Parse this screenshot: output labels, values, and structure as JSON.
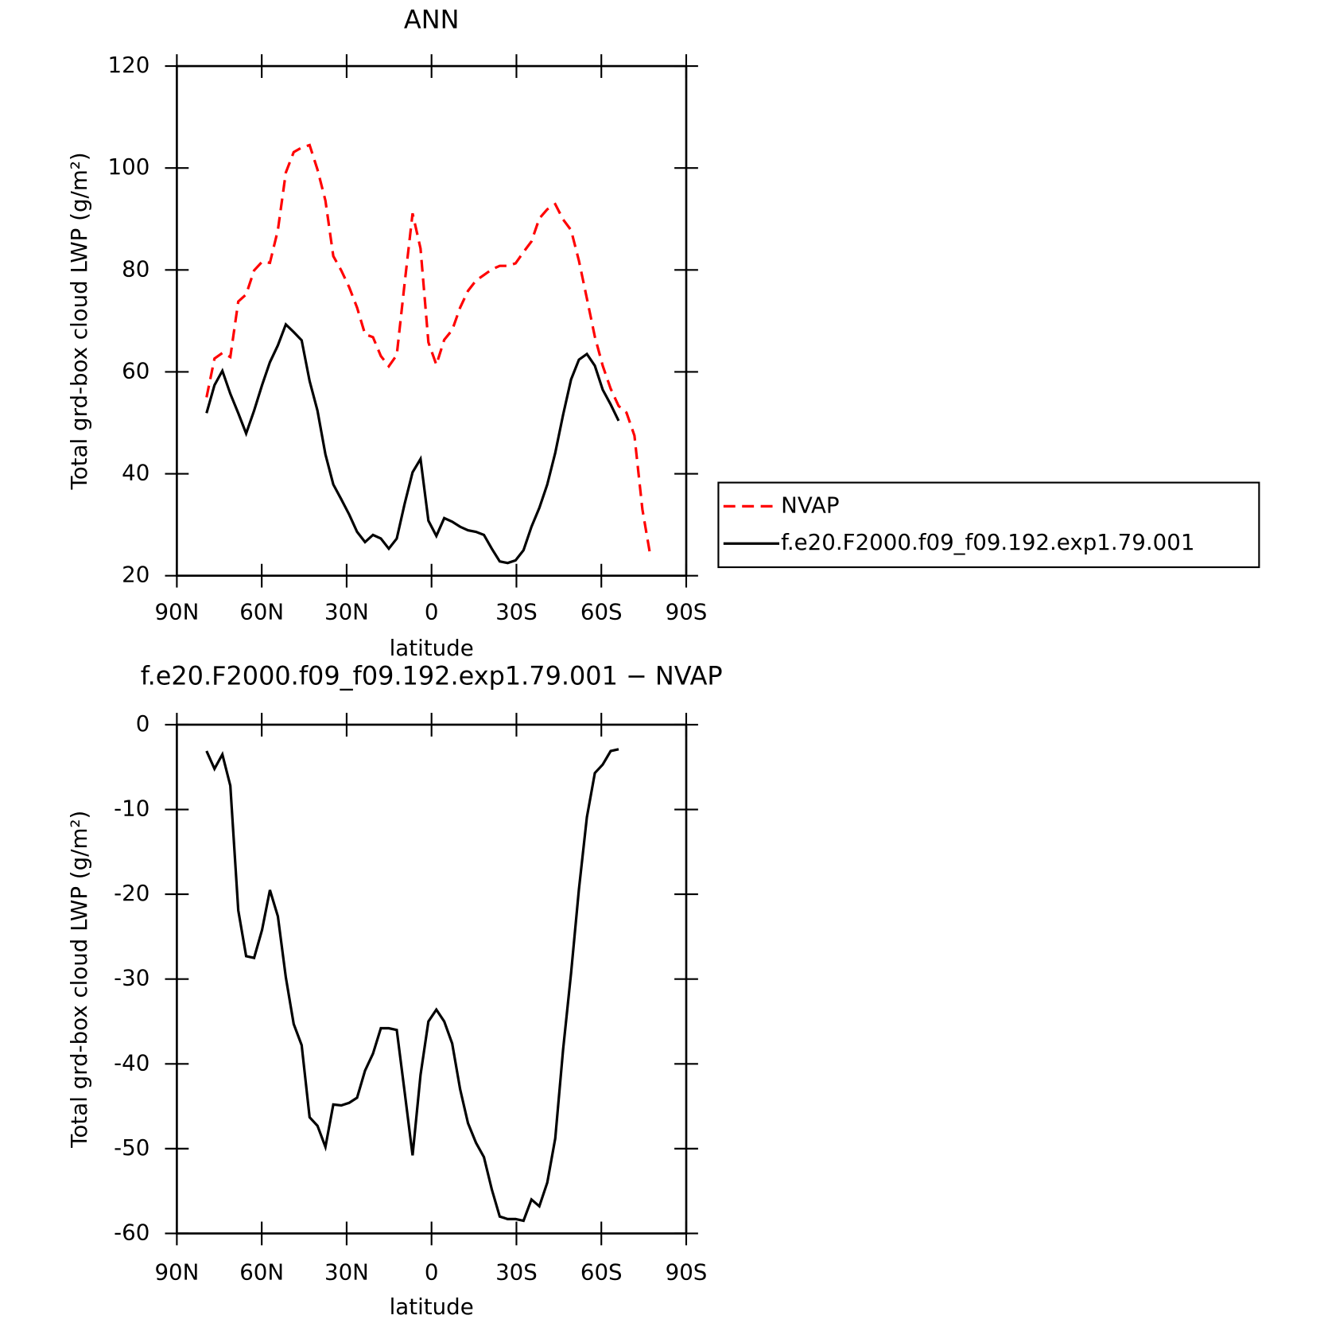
{
  "chart_data": [
    {
      "type": "line",
      "title": "ANN",
      "xlabel": "latitude",
      "ylabel": "Total grd-box cloud LWP (g/m²)",
      "xlim": [
        90,
        -90
      ],
      "ylim": [
        20,
        120
      ],
      "xticks": [
        {
          "value": 90,
          "label": "90N"
        },
        {
          "value": 60,
          "label": "60N"
        },
        {
          "value": 30,
          "label": "30N"
        },
        0,
        {
          "value": -30,
          "label": "30S"
        },
        {
          "value": -60,
          "label": "60S"
        },
        {
          "value": -90,
          "label": "90S"
        }
      ],
      "yticks": [
        20,
        40,
        60,
        80,
        100,
        120
      ],
      "legend": "outside right",
      "series": [
        {
          "name": "NVAP",
          "color": "#ff0000",
          "dash": true,
          "x": [
            79.5,
            76.7,
            73.9,
            71.1,
            68.3,
            65.5,
            62.7,
            59.9,
            57.1,
            54.3,
            51.5,
            48.7,
            45.9,
            43.1,
            40.3,
            37.5,
            34.7,
            31.9,
            29.1,
            26.3,
            23.5,
            20.7,
            17.9,
            15.1,
            12.3,
            9.5,
            6.7,
            3.9,
            1.1,
            -1.7,
            -4.5,
            -7.3,
            -10.1,
            -12.9,
            -15.7,
            -18.5,
            -21.3,
            -24.1,
            -26.9,
            -29.7,
            -32.5,
            -35.3,
            -38.1,
            -40.9,
            -43.7,
            -46.5,
            -49.3,
            -52.1,
            -54.9,
            -57.7,
            -60.5,
            -63.3,
            -66.1,
            -68.9,
            -71.7,
            -74.5,
            -77.3
          ],
          "values": [
            55.0,
            62.6,
            63.7,
            62.9,
            73.8,
            75.2,
            79.9,
            81.6,
            81.4,
            87.8,
            99.1,
            103.1,
            104.0,
            104.5,
            99.7,
            93.6,
            82.7,
            79.9,
            76.6,
            72.6,
            67.4,
            66.8,
            63.1,
            61.1,
            63.3,
            77.4,
            91.1,
            84.2,
            65.8,
            61.4,
            66.3,
            68.2,
            72.6,
            75.9,
            77.9,
            79.0,
            80.1,
            80.8,
            80.8,
            81.3,
            83.5,
            85.6,
            90.1,
            91.9,
            92.9,
            89.9,
            87.8,
            81.8,
            74.4,
            66.9,
            61.2,
            56.7,
            53.3,
            52.0,
            47.5,
            33.0,
            24.0
          ]
        },
        {
          "name": "f.e20.F2000.f09_f09.192.exp1.79.001",
          "color": "#000000",
          "dash": false,
          "x": [
            79.5,
            76.7,
            73.9,
            71.1,
            68.3,
            65.5,
            62.7,
            59.9,
            57.1,
            54.3,
            51.5,
            48.7,
            45.9,
            43.1,
            40.3,
            37.5,
            34.7,
            31.9,
            29.1,
            26.3,
            23.5,
            20.7,
            17.9,
            15.1,
            12.3,
            9.5,
            6.7,
            3.9,
            1.1,
            -1.7,
            -4.5,
            -7.3,
            -10.1,
            -12.9,
            -15.7,
            -18.5,
            -21.3,
            -24.1,
            -26.9,
            -29.7,
            -32.5,
            -35.3,
            -38.1,
            -40.9,
            -43.7,
            -46.5,
            -49.3,
            -52.1,
            -54.9,
            -57.7,
            -60.5,
            -63.3,
            -66.1
          ],
          "values": [
            51.9,
            57.4,
            60.2,
            55.7,
            51.9,
            47.9,
            52.4,
            57.4,
            61.9,
            65.2,
            69.3,
            67.8,
            66.2,
            58.2,
            52.4,
            43.8,
            37.9,
            35.0,
            32.0,
            28.6,
            26.6,
            28.0,
            27.3,
            25.3,
            27.3,
            34.1,
            40.3,
            42.9,
            30.8,
            27.8,
            31.3,
            30.6,
            29.6,
            28.9,
            28.6,
            28.0,
            25.3,
            22.8,
            22.5,
            23.0,
            25.0,
            29.6,
            33.3,
            37.9,
            44.1,
            51.6,
            58.5,
            62.4,
            63.5,
            61.2,
            56.5,
            53.6,
            50.4
          ]
        }
      ]
    },
    {
      "type": "line",
      "title": "f.e20.F2000.f09_f09.192.exp1.79.001 − NVAP",
      "xlabel": "latitude",
      "ylabel": "Total grd-box cloud LWP (g/m²)",
      "xlim": [
        90,
        -90
      ],
      "ylim": [
        -60,
        0
      ],
      "xticks": [
        {
          "value": 90,
          "label": "90N"
        },
        {
          "value": 60,
          "label": "60N"
        },
        {
          "value": 30,
          "label": "30N"
        },
        0,
        {
          "value": -30,
          "label": "30S"
        },
        {
          "value": -60,
          "label": "60S"
        },
        {
          "value": -90,
          "label": "90S"
        }
      ],
      "yticks": [
        -60,
        -50,
        -40,
        -30,
        -20,
        -10,
        0
      ],
      "series": [
        {
          "color": "#000000",
          "dash": false,
          "x": [
            79.5,
            76.7,
            73.9,
            71.1,
            68.3,
            65.5,
            62.7,
            59.9,
            57.1,
            54.3,
            51.5,
            48.7,
            45.9,
            43.1,
            40.3,
            37.5,
            34.7,
            31.9,
            29.1,
            26.3,
            23.5,
            20.7,
            17.9,
            15.1,
            12.3,
            9.5,
            6.7,
            3.9,
            1.1,
            -1.7,
            -4.5,
            -7.3,
            -10.1,
            -12.9,
            -15.7,
            -18.5,
            -21.3,
            -24.1,
            -26.9,
            -29.7,
            -32.5,
            -35.3,
            -38.1,
            -40.9,
            -43.7,
            -46.5,
            -49.3,
            -52.1,
            -54.9,
            -57.7,
            -60.5,
            -63.3,
            -66.1
          ],
          "values": [
            -3.1,
            -5.2,
            -3.5,
            -7.2,
            -21.9,
            -27.3,
            -27.5,
            -24.2,
            -19.5,
            -22.6,
            -29.8,
            -35.3,
            -37.8,
            -46.3,
            -47.3,
            -49.8,
            -44.8,
            -44.9,
            -44.6,
            -44.0,
            -40.8,
            -38.8,
            -35.8,
            -35.8,
            -36.0,
            -43.3,
            -50.8,
            -41.3,
            -35.0,
            -33.6,
            -35.0,
            -37.6,
            -43.0,
            -47.0,
            -49.3,
            -51.0,
            -54.8,
            -58.0,
            -58.3,
            -58.3,
            -58.5,
            -56.0,
            -56.8,
            -54.0,
            -48.8,
            -38.3,
            -29.3,
            -19.4,
            -10.9,
            -5.7,
            -4.7,
            -3.1,
            -2.9
          ]
        }
      ]
    }
  ]
}
